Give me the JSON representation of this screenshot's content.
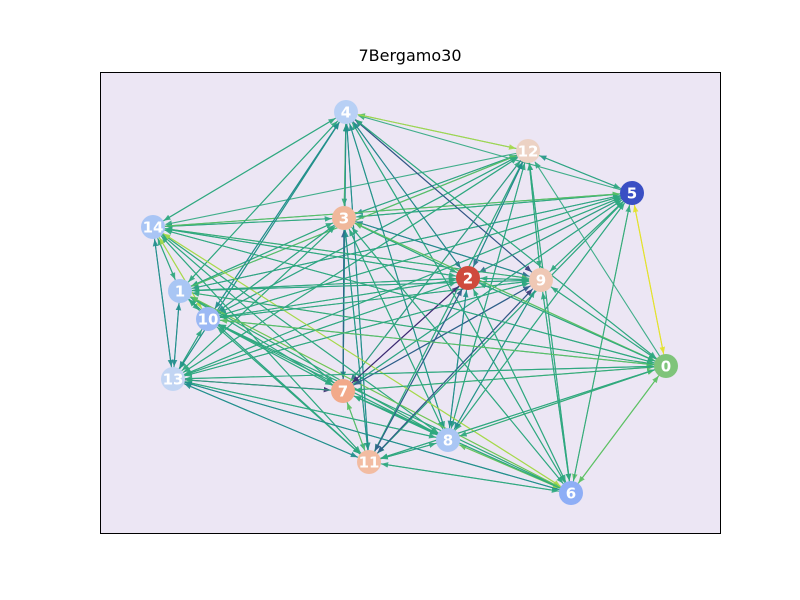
{
  "title": "7Bergamo30",
  "colors": {
    "plot_background": "#ece6f4",
    "frame": "#000000",
    "edge_palette": [
      "#3b2a72",
      "#2e5f8a",
      "#218f8c",
      "#2ea87f",
      "#5cc163",
      "#a6d94a",
      "#e3e22a"
    ]
  },
  "graph": {
    "directed": true,
    "nodes": [
      {
        "id": "0",
        "label": "0",
        "color": "#7fc47a"
      },
      {
        "id": "1",
        "label": "1",
        "color": "#a9c6f4"
      },
      {
        "id": "2",
        "label": "2",
        "color": "#cf4a3d"
      },
      {
        "id": "3",
        "label": "3",
        "color": "#f0b89b"
      },
      {
        "id": "4",
        "label": "4",
        "color": "#b8d0f5"
      },
      {
        "id": "5",
        "label": "5",
        "color": "#3a4fc4"
      },
      {
        "id": "6",
        "label": "6",
        "color": "#8eaef6"
      },
      {
        "id": "7",
        "label": "7",
        "color": "#f2a98a"
      },
      {
        "id": "8",
        "label": "8",
        "color": "#aac6f4"
      },
      {
        "id": "9",
        "label": "9",
        "color": "#efc8b5"
      },
      {
        "id": "10",
        "label": "10",
        "color": "#9cb9f4"
      },
      {
        "id": "11",
        "label": "11",
        "color": "#f2bca2"
      },
      {
        "id": "12",
        "label": "12",
        "color": "#ecd2c4"
      },
      {
        "id": "13",
        "label": "13",
        "color": "#c2d5f3"
      },
      {
        "id": "14",
        "label": "14",
        "color": "#a9c5f5"
      }
    ],
    "edges": [
      [
        "5",
        "0",
        6
      ],
      [
        "0",
        "5",
        6
      ],
      [
        "5",
        "4",
        3
      ],
      [
        "5",
        "3",
        3
      ],
      [
        "5",
        "14",
        3
      ],
      [
        "5",
        "1",
        2
      ],
      [
        "5",
        "10",
        3
      ],
      [
        "5",
        "13",
        3
      ],
      [
        "5",
        "7",
        2
      ],
      [
        "5",
        "11",
        3
      ],
      [
        "5",
        "8",
        3
      ],
      [
        "5",
        "9",
        3
      ],
      [
        "5",
        "2",
        1
      ],
      [
        "5",
        "12",
        2
      ],
      [
        "5",
        "6",
        4
      ],
      [
        "12",
        "4",
        4
      ],
      [
        "12",
        "5",
        3
      ],
      [
        "12",
        "3",
        2
      ],
      [
        "12",
        "14",
        3
      ],
      [
        "12",
        "1",
        3
      ],
      [
        "12",
        "10",
        2
      ],
      [
        "12",
        "13",
        3
      ],
      [
        "12",
        "7",
        1
      ],
      [
        "12",
        "11",
        3
      ],
      [
        "12",
        "8",
        2
      ],
      [
        "12",
        "9",
        3
      ],
      [
        "12",
        "2",
        1
      ],
      [
        "12",
        "6",
        3
      ],
      [
        "4",
        "12",
        5
      ],
      [
        "4",
        "3",
        3
      ],
      [
        "4",
        "14",
        3
      ],
      [
        "4",
        "1",
        3
      ],
      [
        "4",
        "10",
        2
      ],
      [
        "4",
        "13",
        3
      ],
      [
        "4",
        "7",
        3
      ],
      [
        "4",
        "11",
        2
      ],
      [
        "4",
        "8",
        3
      ],
      [
        "4",
        "9",
        0
      ],
      [
        "4",
        "2",
        1
      ],
      [
        "4",
        "6",
        3
      ],
      [
        "4",
        "0",
        3
      ],
      [
        "3",
        "4",
        4
      ],
      [
        "3",
        "12",
        3
      ],
      [
        "3",
        "5",
        3
      ],
      [
        "3",
        "14",
        3
      ],
      [
        "3",
        "1",
        3
      ],
      [
        "3",
        "10",
        2
      ],
      [
        "3",
        "13",
        3
      ],
      [
        "3",
        "7",
        2
      ],
      [
        "3",
        "11",
        3
      ],
      [
        "3",
        "8",
        3
      ],
      [
        "3",
        "9",
        1
      ],
      [
        "3",
        "2",
        3
      ],
      [
        "3",
        "6",
        3
      ],
      [
        "3",
        "0",
        4
      ],
      [
        "14",
        "4",
        3
      ],
      [
        "14",
        "3",
        3
      ],
      [
        "14",
        "1",
        3
      ],
      [
        "14",
        "10",
        5
      ],
      [
        "14",
        "13",
        2
      ],
      [
        "14",
        "7",
        3
      ],
      [
        "14",
        "11",
        3
      ],
      [
        "14",
        "8",
        3
      ],
      [
        "14",
        "9",
        4
      ],
      [
        "14",
        "2",
        3
      ],
      [
        "14",
        "6",
        5
      ],
      [
        "14",
        "5",
        4
      ],
      [
        "14",
        "0",
        3
      ],
      [
        "1",
        "14",
        3
      ],
      [
        "1",
        "4",
        3
      ],
      [
        "1",
        "3",
        3
      ],
      [
        "1",
        "12",
        4
      ],
      [
        "1",
        "13",
        2
      ],
      [
        "1",
        "10",
        3
      ],
      [
        "1",
        "7",
        3
      ],
      [
        "1",
        "11",
        2
      ],
      [
        "1",
        "8",
        4
      ],
      [
        "1",
        "9",
        2
      ],
      [
        "1",
        "2",
        3
      ],
      [
        "1",
        "6",
        6
      ],
      [
        "1",
        "5",
        3
      ],
      [
        "1",
        "0",
        4
      ],
      [
        "10",
        "14",
        5
      ],
      [
        "10",
        "1",
        3
      ],
      [
        "10",
        "4",
        2
      ],
      [
        "10",
        "3",
        3
      ],
      [
        "10",
        "13",
        2
      ],
      [
        "10",
        "7",
        3
      ],
      [
        "10",
        "11",
        3
      ],
      [
        "10",
        "8",
        3
      ],
      [
        "10",
        "9",
        3
      ],
      [
        "10",
        "2",
        3
      ],
      [
        "10",
        "6",
        3
      ],
      [
        "10",
        "12",
        3
      ],
      [
        "10",
        "5",
        3
      ],
      [
        "10",
        "0",
        3
      ],
      [
        "13",
        "14",
        2
      ],
      [
        "13",
        "1",
        2
      ],
      [
        "13",
        "10",
        3
      ],
      [
        "13",
        "4",
        2
      ],
      [
        "13",
        "3",
        3
      ],
      [
        "13",
        "7",
        0
      ],
      [
        "13",
        "11",
        2
      ],
      [
        "13",
        "8",
        3
      ],
      [
        "13",
        "9",
        3
      ],
      [
        "13",
        "2",
        3
      ],
      [
        "13",
        "6",
        2
      ],
      [
        "13",
        "5",
        3
      ],
      [
        "13",
        "0",
        3
      ],
      [
        "13",
        "12",
        3
      ],
      [
        "7",
        "13",
        3
      ],
      [
        "7",
        "10",
        3
      ],
      [
        "7",
        "1",
        3
      ],
      [
        "7",
        "14",
        3
      ],
      [
        "7",
        "4",
        2
      ],
      [
        "7",
        "3",
        1
      ],
      [
        "7",
        "11",
        3
      ],
      [
        "7",
        "8",
        3
      ],
      [
        "7",
        "9",
        1
      ],
      [
        "7",
        "2",
        0
      ],
      [
        "7",
        "6",
        3
      ],
      [
        "7",
        "0",
        4
      ],
      [
        "7",
        "12",
        3
      ],
      [
        "7",
        "5",
        3
      ],
      [
        "11",
        "7",
        4
      ],
      [
        "11",
        "13",
        2
      ],
      [
        "11",
        "10",
        3
      ],
      [
        "11",
        "1",
        3
      ],
      [
        "11",
        "14",
        3
      ],
      [
        "11",
        "4",
        2
      ],
      [
        "11",
        "3",
        2
      ],
      [
        "11",
        "8",
        3
      ],
      [
        "11",
        "9",
        0
      ],
      [
        "11",
        "2",
        1
      ],
      [
        "11",
        "6",
        3
      ],
      [
        "11",
        "0",
        3
      ],
      [
        "11",
        "12",
        3
      ],
      [
        "11",
        "5",
        3
      ],
      [
        "8",
        "11",
        3
      ],
      [
        "8",
        "7",
        3
      ],
      [
        "8",
        "13",
        3
      ],
      [
        "8",
        "10",
        3
      ],
      [
        "8",
        "1",
        3
      ],
      [
        "8",
        "14",
        3
      ],
      [
        "8",
        "4",
        2
      ],
      [
        "8",
        "3",
        3
      ],
      [
        "8",
        "9",
        3
      ],
      [
        "8",
        "2",
        2
      ],
      [
        "8",
        "6",
        5
      ],
      [
        "8",
        "0",
        4
      ],
      [
        "8",
        "12",
        3
      ],
      [
        "8",
        "5",
        3
      ],
      [
        "6",
        "8",
        4
      ],
      [
        "6",
        "11",
        3
      ],
      [
        "6",
        "7",
        3
      ],
      [
        "6",
        "13",
        2
      ],
      [
        "6",
        "10",
        3
      ],
      [
        "6",
        "1",
        4
      ],
      [
        "6",
        "14",
        5
      ],
      [
        "6",
        "4",
        3
      ],
      [
        "6",
        "3",
        3
      ],
      [
        "6",
        "9",
        3
      ],
      [
        "6",
        "2",
        3
      ],
      [
        "6",
        "0",
        4
      ],
      [
        "6",
        "12",
        3
      ],
      [
        "6",
        "5",
        3
      ],
      [
        "9",
        "6",
        3
      ],
      [
        "9",
        "8",
        2
      ],
      [
        "9",
        "11",
        1
      ],
      [
        "9",
        "7",
        1
      ],
      [
        "9",
        "13",
        3
      ],
      [
        "9",
        "10",
        3
      ],
      [
        "9",
        "1",
        3
      ],
      [
        "9",
        "14",
        3
      ],
      [
        "9",
        "4",
        1
      ],
      [
        "9",
        "3",
        2
      ],
      [
        "9",
        "2",
        3
      ],
      [
        "9",
        "0",
        3
      ],
      [
        "9",
        "12",
        3
      ],
      [
        "9",
        "5",
        3
      ],
      [
        "2",
        "9",
        3
      ],
      [
        "2",
        "6",
        3
      ],
      [
        "2",
        "8",
        2
      ],
      [
        "2",
        "11",
        1
      ],
      [
        "2",
        "7",
        0
      ],
      [
        "2",
        "13",
        3
      ],
      [
        "2",
        "10",
        3
      ],
      [
        "2",
        "1",
        3
      ],
      [
        "2",
        "14",
        3
      ],
      [
        "2",
        "4",
        2
      ],
      [
        "2",
        "3",
        3
      ],
      [
        "2",
        "0",
        3
      ],
      [
        "2",
        "12",
        2
      ],
      [
        "2",
        "5",
        3
      ],
      [
        "0",
        "6",
        4
      ],
      [
        "0",
        "8",
        3
      ],
      [
        "0",
        "11",
        3
      ],
      [
        "0",
        "7",
        3
      ],
      [
        "0",
        "13",
        3
      ],
      [
        "0",
        "10",
        4
      ],
      [
        "0",
        "1",
        3
      ],
      [
        "0",
        "14",
        3
      ],
      [
        "0",
        "4",
        3
      ],
      [
        "0",
        "3",
        4
      ],
      [
        "0",
        "9",
        3
      ],
      [
        "0",
        "2",
        3
      ],
      [
        "0",
        "12",
        3
      ]
    ]
  }
}
